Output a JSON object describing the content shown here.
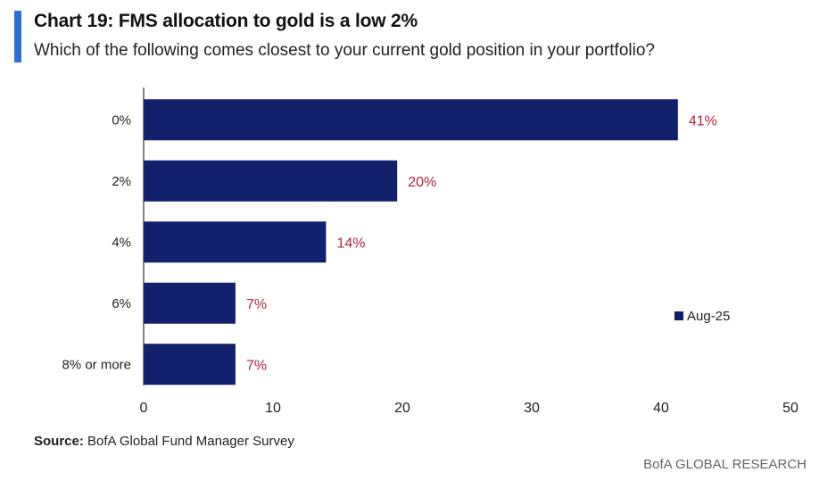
{
  "header": {
    "title": "Chart 19: FMS allocation to gold is a low 2%",
    "subtitle": "Which of the following comes closest to your current gold position in your portfolio?"
  },
  "chart_data": {
    "type": "bar",
    "orientation": "horizontal",
    "categories": [
      "0%",
      "2%",
      "4%",
      "6%",
      "8% or more"
    ],
    "series": [
      {
        "name": "Aug-25",
        "values": [
          41.3,
          19.6,
          14.1,
          7.1,
          7.1
        ],
        "labels": [
          "41%",
          "20%",
          "14%",
          "7%",
          "7%"
        ]
      }
    ],
    "xlim": [
      0,
      50
    ],
    "xticks": [
      "0",
      "10",
      "20",
      "30",
      "40",
      "50"
    ],
    "legend": "right",
    "colors": {
      "bar": "#13206b",
      "label": "#b0243a",
      "axis": "#333333"
    }
  },
  "footer": {
    "source_label": "Source:",
    "source_text": "BofA Global Fund Manager Survey",
    "brand": "BofA GLOBAL RESEARCH"
  }
}
